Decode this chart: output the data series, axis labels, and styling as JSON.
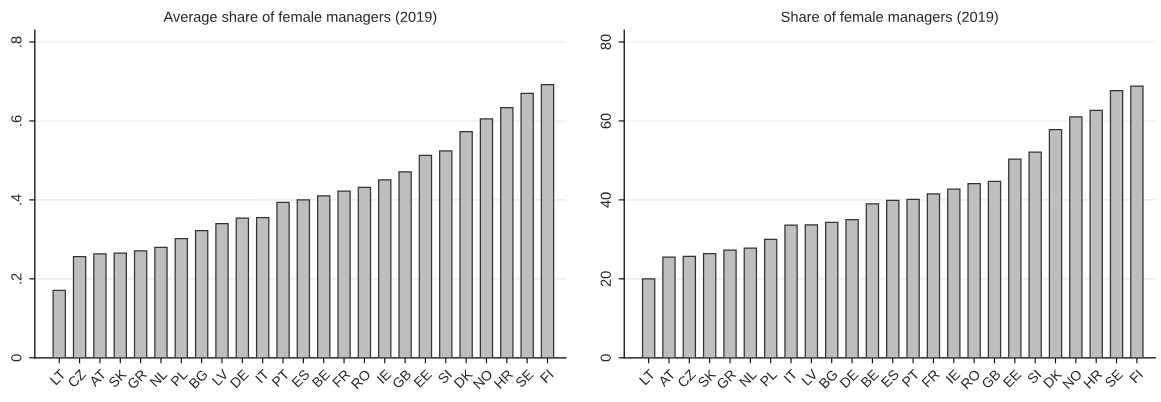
{
  "chart_data": [
    {
      "type": "bar",
      "title": "Average share of female managers (2019)",
      "categories": [
        "LT",
        "CZ",
        "AT",
        "SK",
        "GR",
        "NL",
        "PL",
        "BG",
        "LV",
        "DE",
        "IT",
        "PT",
        "ES",
        "BE",
        "FR",
        "RO",
        "IE",
        "GB",
        "EE",
        "SI",
        "DK",
        "NO",
        "HR",
        "SE",
        "FI"
      ],
      "values": [
        0.171,
        0.256,
        0.263,
        0.265,
        0.271,
        0.28,
        0.302,
        0.322,
        0.34,
        0.354,
        0.355,
        0.394,
        0.4,
        0.41,
        0.422,
        0.432,
        0.451,
        0.471,
        0.513,
        0.524,
        0.573,
        0.605,
        0.634,
        0.67,
        0.692
      ],
      "color": "#bebebe",
      "ylim": [
        0,
        0.83
      ],
      "yticks": [
        {
          "value": 0,
          "label": "0"
        },
        {
          "value": 0.2,
          "label": ".2"
        },
        {
          "value": 0.4,
          "label": ".4"
        },
        {
          "value": 0.6,
          "label": ".6"
        },
        {
          "value": 0.8,
          "label": ".8"
        }
      ],
      "grid": "y"
    },
    {
      "type": "bar",
      "title": "Share of female managers (2019)",
      "categories": [
        "LT",
        "AT",
        "CZ",
        "SK",
        "GR",
        "NL",
        "PL",
        "IT",
        "LV",
        "BG",
        "DE",
        "BE",
        "ES",
        "PT",
        "FR",
        "IE",
        "RO",
        "GB",
        "EE",
        "SI",
        "DK",
        "NO",
        "HR",
        "SE",
        "FI"
      ],
      "values": [
        20.0,
        25.5,
        25.7,
        26.4,
        27.3,
        27.8,
        30.0,
        33.6,
        33.7,
        34.3,
        35.0,
        39.0,
        39.9,
        40.1,
        41.5,
        42.7,
        44.1,
        44.7,
        50.3,
        52.1,
        57.8,
        61.0,
        62.7,
        67.7,
        68.8
      ],
      "color": "#bebebe",
      "ylim": [
        0,
        83
      ],
      "yticks": [
        0,
        20,
        40,
        60,
        80
      ],
      "grid": "y"
    }
  ]
}
